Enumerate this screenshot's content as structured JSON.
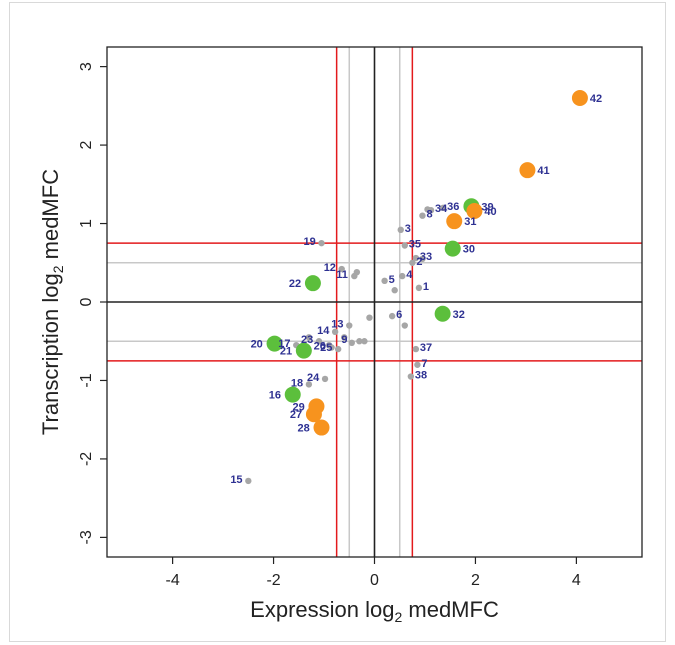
{
  "chart_data": {
    "type": "scatter",
    "xlabel": "Expression log₂ medMFC",
    "ylabel": "Transcription log₂ medMFC",
    "xlim": [
      -5.3,
      5.3
    ],
    "ylim": [
      -3.25,
      3.25
    ],
    "xticks": [
      -4,
      -2,
      0,
      2,
      4
    ],
    "yticks": [
      -3,
      -2,
      -1,
      0,
      1,
      2,
      3
    ],
    "reference_lines": {
      "zero": 0,
      "gray_threshold": 0.5,
      "red_threshold": 0.75
    },
    "colors": {
      "gray_point": "#a6a6a6",
      "green_point": "#5cbf3c",
      "orange_point": "#f7931e",
      "red_line": "#e31a1c",
      "gray_line": "#c8c8c8",
      "zero_line": "#222222",
      "label": "#2e3192"
    },
    "points": [
      {
        "label": "1",
        "x": 0.88,
        "y": 0.18,
        "group": "gray"
      },
      {
        "label": "2",
        "x": 0.75,
        "y": 0.5,
        "group": "gray"
      },
      {
        "label": "3",
        "x": 0.52,
        "y": 0.92,
        "group": "gray"
      },
      {
        "label": "4",
        "x": 0.55,
        "y": 0.33,
        "group": "gray"
      },
      {
        "label": "5",
        "x": 0.2,
        "y": 0.27,
        "group": "gray"
      },
      {
        "label": "6",
        "x": 0.35,
        "y": -0.18,
        "group": "gray"
      },
      {
        "label": "7",
        "x": 0.85,
        "y": -0.8,
        "group": "gray"
      },
      {
        "label": "8",
        "x": 0.95,
        "y": 1.1,
        "group": "gray"
      },
      {
        "label": "9",
        "x": -0.3,
        "y": -0.5,
        "group": "gray"
      },
      {
        "label": "11",
        "x": -0.4,
        "y": 0.33,
        "group": "gray"
      },
      {
        "label": "12",
        "x": -0.65,
        "y": 0.42,
        "group": "gray"
      },
      {
        "label": "13",
        "x": -0.5,
        "y": -0.3,
        "group": "gray"
      },
      {
        "label": "14",
        "x": -0.78,
        "y": -0.38,
        "group": "gray"
      },
      {
        "label": "15",
        "x": -2.5,
        "y": -2.28,
        "group": "gray"
      },
      {
        "label": "16",
        "x": -1.62,
        "y": -1.18,
        "group": "green"
      },
      {
        "label": "17",
        "x": -1.55,
        "y": -0.55,
        "group": "gray"
      },
      {
        "label": "18",
        "x": -1.3,
        "y": -1.05,
        "group": "gray"
      },
      {
        "label": "19",
        "x": -1.05,
        "y": 0.75,
        "group": "gray"
      },
      {
        "label": "20",
        "x": -1.98,
        "y": -0.53,
        "group": "green"
      },
      {
        "label": "21",
        "x": -1.4,
        "y": -0.62,
        "group": "green"
      },
      {
        "label": "22",
        "x": -1.22,
        "y": 0.24,
        "group": "green"
      },
      {
        "label": "23",
        "x": -1.1,
        "y": -0.5,
        "group": "gray"
      },
      {
        "label": "24",
        "x": -0.98,
        "y": -0.98,
        "group": "gray"
      },
      {
        "label": "25",
        "x": -0.72,
        "y": -0.6,
        "group": "gray"
      },
      {
        "label": "26",
        "x": -0.85,
        "y": -0.58,
        "group": "gray"
      },
      {
        "label": "27",
        "x": -1.2,
        "y": -1.43,
        "group": "orange"
      },
      {
        "label": "28",
        "x": -1.05,
        "y": -1.6,
        "group": "orange"
      },
      {
        "label": "29",
        "x": -1.15,
        "y": -1.33,
        "group": "orange"
      },
      {
        "label": "30",
        "x": 1.55,
        "y": 0.68,
        "group": "green"
      },
      {
        "label": "31",
        "x": 1.58,
        "y": 1.03,
        "group": "orange"
      },
      {
        "label": "32",
        "x": 1.35,
        "y": -0.15,
        "group": "green"
      },
      {
        "label": "33",
        "x": 0.82,
        "y": 0.56,
        "group": "gray"
      },
      {
        "label": "34",
        "x": 1.12,
        "y": 1.17,
        "group": "gray"
      },
      {
        "label": "35",
        "x": 0.6,
        "y": 0.72,
        "group": "gray"
      },
      {
        "label": "36",
        "x": 1.36,
        "y": 1.2,
        "group": "gray"
      },
      {
        "label": "37",
        "x": 0.82,
        "y": -0.6,
        "group": "gray"
      },
      {
        "label": "38",
        "x": 0.72,
        "y": -0.95,
        "group": "gray"
      },
      {
        "label": "39",
        "x": 1.92,
        "y": 1.22,
        "group": "green"
      },
      {
        "label": "40",
        "x": 1.98,
        "y": 1.16,
        "group": "orange"
      },
      {
        "label": "41",
        "x": 3.03,
        "y": 1.68,
        "group": "orange"
      },
      {
        "label": "42",
        "x": 4.07,
        "y": 2.6,
        "group": "orange"
      }
    ],
    "extra_gray_points": [
      {
        "x": -0.1,
        "y": -0.2
      },
      {
        "x": -0.45,
        "y": -0.52
      },
      {
        "x": -0.6,
        "y": -0.45
      },
      {
        "x": -0.2,
        "y": -0.5
      },
      {
        "x": 0.6,
        "y": -0.3
      },
      {
        "x": 0.4,
        "y": 0.15
      },
      {
        "x": 1.05,
        "y": 1.18
      },
      {
        "x": 0.95,
        "y": 0.55
      },
      {
        "x": -0.9,
        "y": -0.55
      },
      {
        "x": -1.3,
        "y": -0.45
      },
      {
        "x": -0.35,
        "y": 0.38
      }
    ]
  }
}
